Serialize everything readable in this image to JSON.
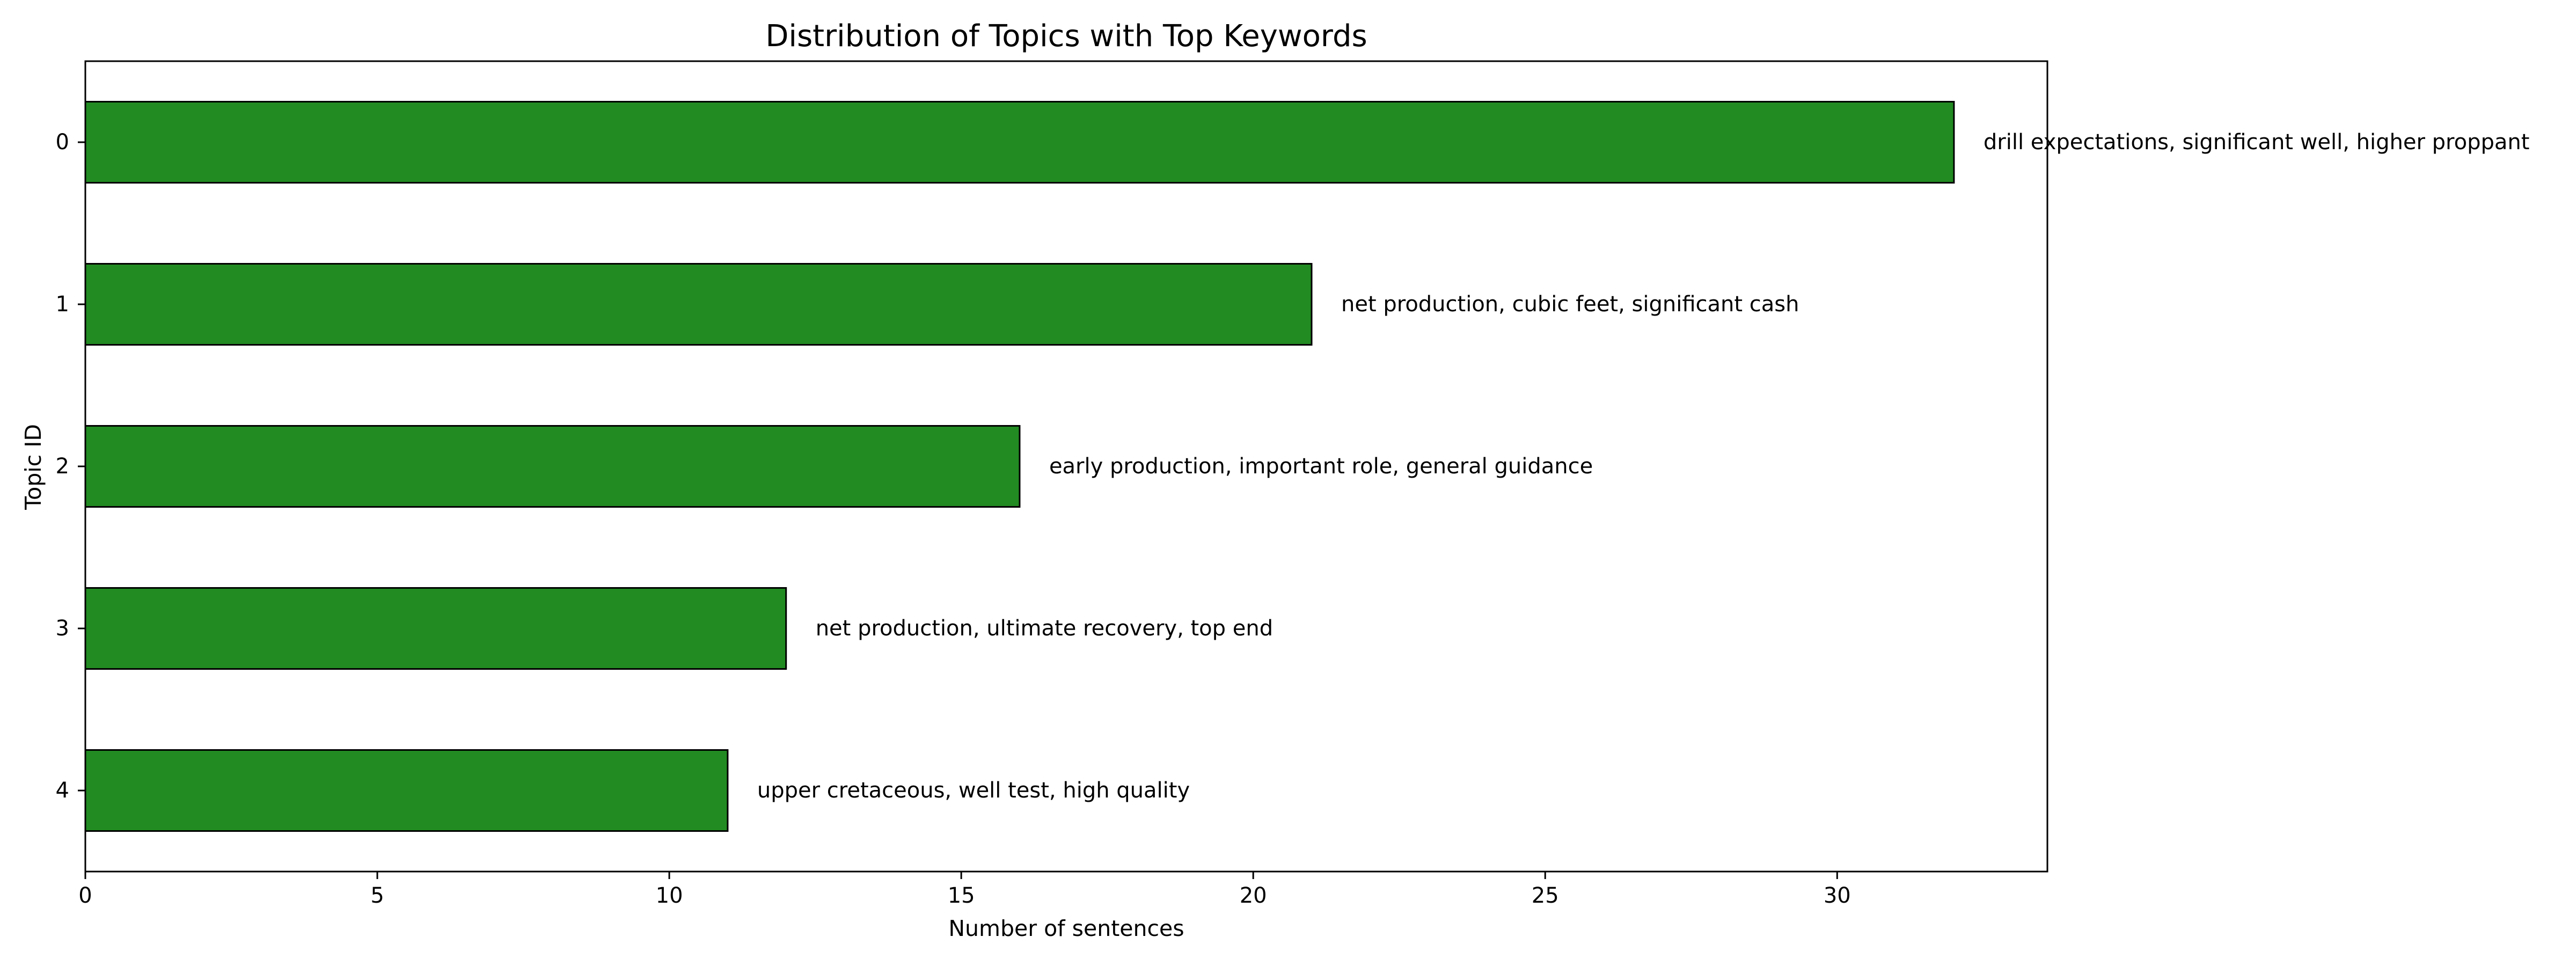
{
  "chart_data": {
    "type": "bar",
    "orientation": "horizontal",
    "title": "Distribution of Topics with Top Keywords",
    "xlabel": "Number of sentences",
    "ylabel": "Topic ID",
    "categories": [
      "0",
      "1",
      "2",
      "3",
      "4"
    ],
    "values": [
      32,
      21,
      16,
      12,
      11
    ],
    "bar_labels": [
      "drill expectations, significant well, higher proppant",
      "net production, cubic feet, significant cash",
      "early production, important role, general guidance",
      "net production, ultimate recovery, top end",
      "upper cretaceous, well test, high quality"
    ],
    "xlim": [
      0,
      33.6
    ],
    "xticks": [
      0,
      5,
      10,
      15,
      20,
      25,
      30
    ],
    "grid": false,
    "legend": "none",
    "bar_color": "#228b22",
    "edge_color": "#000000"
  }
}
